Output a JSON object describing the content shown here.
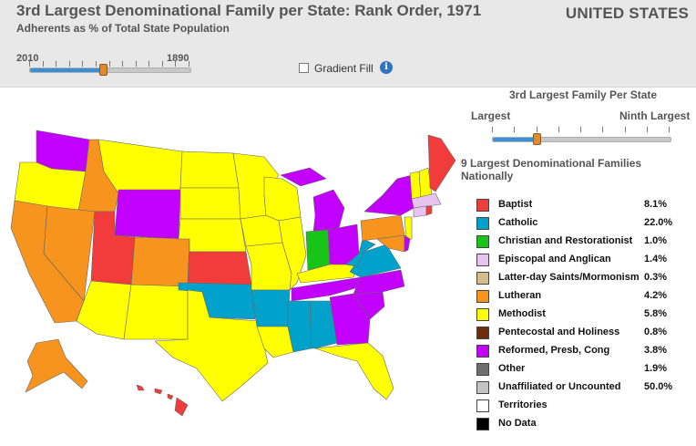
{
  "header": {
    "title": "3rd Largest Denominational Family per State: Rank Order, 1971",
    "subtitle": "Adherents as % of Total State Population",
    "country": "UNITED STATES"
  },
  "year_slider": {
    "start_label": "2010",
    "end_label": "1890",
    "position_fraction": 0.46
  },
  "gradient_fill": {
    "label": "Gradient Fill",
    "checked": false
  },
  "rank_slider": {
    "title": "3rd Largest Family Per State",
    "min_label": "Largest",
    "max_label": "Ninth Largest",
    "position_fraction": 0.25
  },
  "legend": {
    "title": "9 Largest Denominational Families Nationally",
    "items": [
      {
        "label": "Baptist",
        "value": "8.1%",
        "color": "#f23b3b"
      },
      {
        "label": "Catholic",
        "value": "22.0%",
        "color": "#00a2cc"
      },
      {
        "label": "Christian and Restorationist",
        "value": "1.0%",
        "color": "#17c417"
      },
      {
        "label": "Episcopal and Anglican",
        "value": "1.4%",
        "color": "#e6c3f0"
      },
      {
        "label": "Latter-day Saints/Mormonism",
        "value": "0.3%",
        "color": "#d4bd8a"
      },
      {
        "label": "Lutheran",
        "value": "4.2%",
        "color": "#f7941e"
      },
      {
        "label": "Methodist",
        "value": "5.8%",
        "color": "#ffff00"
      },
      {
        "label": "Pentecostal and Holiness",
        "value": "0.8%",
        "color": "#6b2d0a"
      },
      {
        "label": "Reformed, Presb, Cong",
        "value": "3.8%",
        "color": "#c300ff"
      },
      {
        "label": "Other",
        "value": "1.9%",
        "color": "#6e6e6e"
      },
      {
        "label": "Unaffiliated or Uncounted",
        "value": "50.0%",
        "color": "#c4c4c4"
      },
      {
        "label": "Territories",
        "value": "",
        "color": "#ffffff"
      },
      {
        "label": "No Data",
        "value": "",
        "color": "#000000"
      }
    ]
  },
  "colors": {
    "baptist": "#f23b3b",
    "catholic": "#00a2cc",
    "christian": "#17c417",
    "episcopal": "#e6c3f0",
    "lutheran": "#f7941e",
    "methodist": "#ffff00",
    "reformed": "#c300ff"
  }
}
